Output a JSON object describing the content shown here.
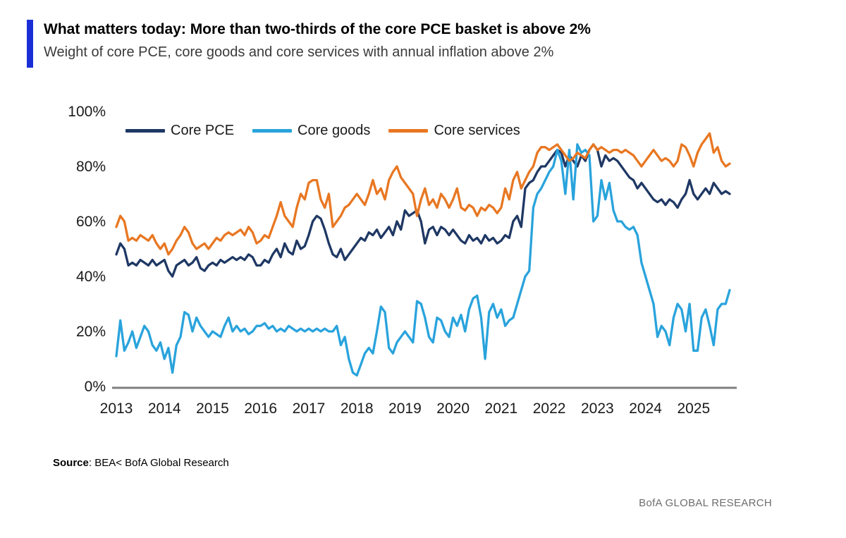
{
  "header": {
    "title": "What matters today: More than two-thirds of the core PCE basket is above 2%",
    "subtitle": "Weight of core PCE, core goods and core services with annual inflation above 2%"
  },
  "footer": {
    "source_label": "Source",
    "source_text": ": BEA< BofA Global Research",
    "brand": "BofA GLOBAL RESEARCH"
  },
  "colors": {
    "accent_bar": "#1a2ed6",
    "axis": "#7f7f7f",
    "brand_text": "#6d6d6d"
  },
  "chart_data": {
    "type": "line",
    "title": "What matters today: More than two-thirds of the core PCE basket is above 2%",
    "subtitle": "Weight of core PCE, core goods and core services with annual inflation above 2%",
    "x_unit": "monthly",
    "x_start": "2013-01",
    "x_end": "2025-10",
    "x_tick_labels": [
      "2013",
      "2014",
      "2015",
      "2016",
      "2017",
      "2018",
      "2019",
      "2020",
      "2021",
      "2022",
      "2023",
      "2024",
      "2025"
    ],
    "ylim": [
      0,
      100
    ],
    "y_tick_values": [
      0,
      20,
      40,
      60,
      80,
      100
    ],
    "y_tick_labels": [
      "0%",
      "20%",
      "40%",
      "60%",
      "80%",
      "100%"
    ],
    "grid": false,
    "legend_position": "top-left-inside",
    "axis_color": "#7f7f7f",
    "series": [
      {
        "name": "Core PCE",
        "color": "#1f3864",
        "values": [
          48,
          52,
          50,
          44,
          45,
          44,
          46,
          45,
          44,
          46,
          44,
          45,
          46,
          42,
          40,
          44,
          45,
          46,
          44,
          45,
          47,
          43,
          42,
          44,
          45,
          44,
          46,
          45,
          46,
          47,
          46,
          47,
          46,
          48,
          47,
          44,
          44,
          46,
          45,
          48,
          50,
          47,
          52,
          49,
          48,
          53,
          50,
          51,
          55,
          60,
          62,
          61,
          57,
          52,
          48,
          47,
          50,
          46,
          48,
          50,
          52,
          54,
          53,
          56,
          55,
          57,
          54,
          56,
          58,
          55,
          60,
          57,
          64,
          62,
          63,
          64,
          60,
          52,
          57,
          58,
          55,
          58,
          57,
          55,
          57,
          55,
          53,
          52,
          55,
          53,
          54,
          52,
          55,
          53,
          54,
          52,
          53,
          55,
          54,
          60,
          62,
          58,
          72,
          74,
          75,
          78,
          80,
          80,
          82,
          84,
          86,
          85,
          80,
          84,
          82,
          80,
          84,
          82,
          86,
          88,
          86,
          80,
          84,
          82,
          83,
          82,
          80,
          78,
          76,
          75,
          72,
          74,
          72,
          70,
          68,
          67,
          68,
          66,
          68,
          67,
          65,
          68,
          70,
          75,
          70,
          68,
          70,
          72,
          70,
          74,
          72,
          70,
          71,
          70
        ]
      },
      {
        "name": "Core goods",
        "color": "#29a3dc",
        "values": [
          11,
          24,
          13,
          16,
          20,
          14,
          18,
          22,
          20,
          15,
          13,
          16,
          10,
          14,
          5,
          15,
          18,
          27,
          26,
          20,
          25,
          22,
          20,
          18,
          20,
          19,
          18,
          22,
          25,
          20,
          22,
          20,
          21,
          19,
          20,
          22,
          22,
          23,
          21,
          22,
          20,
          21,
          20,
          22,
          21,
          20,
          21,
          20,
          21,
          20,
          21,
          20,
          21,
          20,
          20,
          22,
          15,
          18,
          10,
          5,
          4,
          8,
          12,
          14,
          12,
          20,
          29,
          27,
          14,
          12,
          16,
          18,
          20,
          18,
          16,
          31,
          30,
          25,
          18,
          16,
          25,
          24,
          20,
          18,
          25,
          22,
          26,
          20,
          28,
          32,
          33,
          25,
          10,
          27,
          30,
          25,
          28,
          22,
          24,
          25,
          30,
          35,
          40,
          42,
          65,
          70,
          72,
          75,
          78,
          80,
          86,
          82,
          70,
          86,
          68,
          88,
          85,
          86,
          84,
          60,
          62,
          75,
          68,
          74,
          64,
          60,
          60,
          58,
          57,
          58,
          55,
          45,
          40,
          35,
          30,
          18,
          22,
          20,
          15,
          25,
          30,
          28,
          20,
          30,
          13,
          13,
          25,
          28,
          22,
          15,
          28,
          30,
          30,
          35
        ]
      },
      {
        "name": "Core services",
        "color": "#e87722",
        "values": [
          58,
          62,
          60,
          53,
          54,
          53,
          55,
          54,
          53,
          55,
          52,
          50,
          52,
          48,
          50,
          53,
          55,
          58,
          56,
          52,
          50,
          51,
          52,
          50,
          52,
          54,
          53,
          55,
          56,
          55,
          56,
          57,
          55,
          58,
          56,
          52,
          53,
          55,
          54,
          58,
          62,
          67,
          62,
          60,
          58,
          65,
          70,
          68,
          74,
          75,
          75,
          68,
          65,
          70,
          58,
          60,
          62,
          65,
          66,
          68,
          70,
          68,
          66,
          70,
          75,
          70,
          72,
          68,
          75,
          78,
          80,
          76,
          74,
          72,
          70,
          62,
          68,
          72,
          66,
          68,
          65,
          70,
          68,
          65,
          68,
          72,
          65,
          64,
          66,
          65,
          62,
          65,
          64,
          66,
          65,
          63,
          65,
          72,
          68,
          75,
          78,
          72,
          75,
          78,
          80,
          85,
          87,
          87,
          86,
          87,
          88,
          86,
          84,
          82,
          83,
          85,
          84,
          83,
          86,
          88,
          86,
          87,
          86,
          85,
          86,
          86,
          85,
          86,
          85,
          84,
          82,
          80,
          82,
          84,
          86,
          84,
          82,
          83,
          82,
          80,
          82,
          88,
          87,
          84,
          80,
          85,
          88,
          90,
          92,
          85,
          87,
          82,
          80,
          81
        ]
      }
    ]
  }
}
